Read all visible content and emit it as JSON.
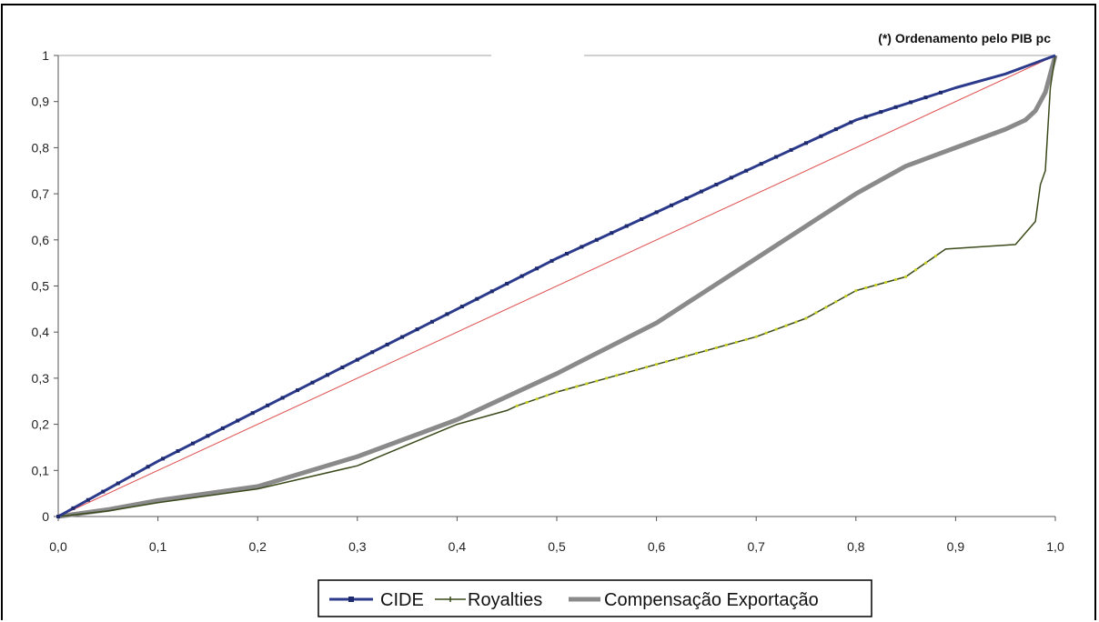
{
  "chart_data": {
    "type": "line",
    "annotation": "(*) Ordenamento pelo PIB pc",
    "xlim": [
      0,
      1
    ],
    "ylim": [
      0,
      1
    ],
    "x_ticks": [
      "0,0",
      "0,1",
      "0,2",
      "0,3",
      "0,4",
      "0,5",
      "0,6",
      "0,7",
      "0,8",
      "0,9",
      "1,0"
    ],
    "y_ticks": [
      "0",
      "0,1",
      "0,2",
      "0,3",
      "0,4",
      "0,5",
      "0,6",
      "0,7",
      "0,8",
      "0,9",
      "1"
    ],
    "grid": false,
    "legend_position": "bottom",
    "equality_line": {
      "x": [
        0,
        1
      ],
      "y": [
        0,
        1
      ],
      "color": "#e05050"
    },
    "series": [
      {
        "name": "CIDE",
        "color": "#2c3a8c",
        "style": "line-markers",
        "x": [
          0,
          0.1,
          0.2,
          0.3,
          0.4,
          0.5,
          0.6,
          0.7,
          0.8,
          0.9,
          0.95,
          1.0
        ],
        "y": [
          0,
          0.12,
          0.23,
          0.34,
          0.45,
          0.56,
          0.66,
          0.76,
          0.86,
          0.93,
          0.96,
          1.0
        ]
      },
      {
        "name": "Royalties",
        "color": "#3a4a1a",
        "style": "thin-line",
        "x": [
          0,
          0.05,
          0.1,
          0.2,
          0.3,
          0.4,
          0.45,
          0.46,
          0.5,
          0.6,
          0.7,
          0.75,
          0.8,
          0.85,
          0.87,
          0.89,
          0.96,
          0.98,
          0.985,
          0.99,
          0.995,
          1.0
        ],
        "y": [
          0,
          0.012,
          0.03,
          0.06,
          0.11,
          0.2,
          0.23,
          0.24,
          0.27,
          0.33,
          0.39,
          0.43,
          0.49,
          0.52,
          0.55,
          0.58,
          0.59,
          0.64,
          0.72,
          0.75,
          0.93,
          1.0
        ]
      },
      {
        "name": "Compensação Exportação",
        "color": "#8a8a8a",
        "style": "thick-line",
        "x": [
          0,
          0.05,
          0.1,
          0.2,
          0.3,
          0.4,
          0.5,
          0.6,
          0.7,
          0.8,
          0.85,
          0.9,
          0.95,
          0.97,
          0.98,
          0.99,
          1.0
        ],
        "y": [
          0,
          0.015,
          0.035,
          0.065,
          0.13,
          0.21,
          0.31,
          0.42,
          0.56,
          0.7,
          0.76,
          0.8,
          0.84,
          0.86,
          0.88,
          0.92,
          1.0
        ]
      }
    ]
  }
}
